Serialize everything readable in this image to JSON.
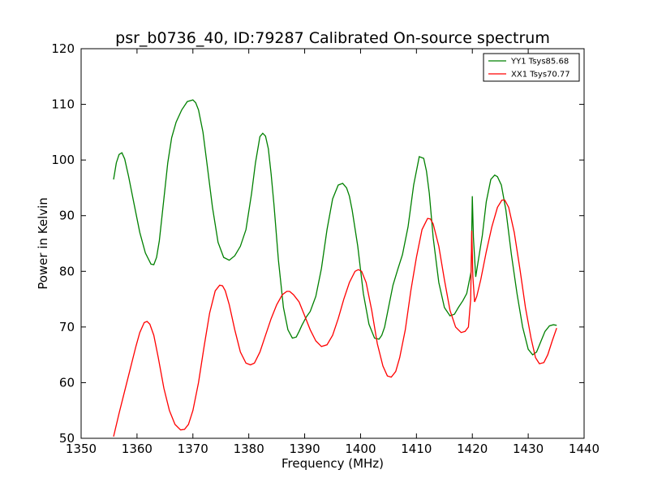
{
  "chart_data": {
    "type": "line",
    "title": "psr_b0736_40, ID:79287 Calibrated On-source spectrum",
    "xlabel": "Frequency (MHz)",
    "ylabel": "Power in Kelvin",
    "xlim": [
      1350,
      1440
    ],
    "ylim": [
      50,
      120
    ],
    "xticks": [
      1350,
      1360,
      1370,
      1380,
      1390,
      1400,
      1410,
      1420,
      1430,
      1440
    ],
    "yticks": [
      50,
      60,
      70,
      80,
      90,
      100,
      110,
      120
    ],
    "grid": false,
    "legend_position": "top-right",
    "series": [
      {
        "name": "YY1 Tsys85.68",
        "color": "#008000",
        "x": [
          1355.8,
          1356.3,
          1356.8,
          1357.3,
          1357.8,
          1358.5,
          1359.5,
          1360.5,
          1361.5,
          1362.5,
          1363.0,
          1363.5,
          1364.0,
          1364.8,
          1365.5,
          1366.2,
          1367.0,
          1368.0,
          1369.0,
          1370.0,
          1370.5,
          1371.0,
          1371.8,
          1372.5,
          1373.5,
          1374.5,
          1375.5,
          1376.5,
          1377.5,
          1378.5,
          1379.5,
          1380.5,
          1381.2,
          1382.0,
          1382.5,
          1383.0,
          1383.5,
          1384.0,
          1384.5,
          1385.3,
          1386.2,
          1387.0,
          1387.8,
          1388.5,
          1389.0,
          1389.5,
          1390.3,
          1391.0,
          1392.0,
          1393.0,
          1394.0,
          1395.0,
          1396.0,
          1396.8,
          1397.5,
          1398.0,
          1398.5,
          1399.5,
          1400.5,
          1401.5,
          1402.5,
          1403.3,
          1403.8,
          1404.3,
          1405.0,
          1405.8,
          1406.7,
          1407.5,
          1408.5,
          1409.5,
          1410.5,
          1411.3,
          1411.8,
          1412.3,
          1413.0,
          1414.0,
          1415.0,
          1416.0,
          1416.8,
          1417.5,
          1418.3,
          1419.0,
          1419.8,
          1420.0,
          1420.2,
          1420.6,
          1421.0,
          1421.8,
          1422.5,
          1423.3,
          1424.0,
          1424.5,
          1425.2,
          1426.0,
          1427.0,
          1428.0,
          1429.0,
          1430.0,
          1430.8,
          1431.5,
          1432.3,
          1433.0,
          1433.8,
          1434.5,
          1435.1
        ],
        "y": [
          96.5,
          99.5,
          101.0,
          101.3,
          100.2,
          97.0,
          92.0,
          87.0,
          83.3,
          81.3,
          81.2,
          82.5,
          85.5,
          93.0,
          99.5,
          104.0,
          106.8,
          109.0,
          110.5,
          110.8,
          110.3,
          109.0,
          105.0,
          99.5,
          91.5,
          85.2,
          82.5,
          82.0,
          82.8,
          84.5,
          87.5,
          94.0,
          99.5,
          104.2,
          104.8,
          104.3,
          102.0,
          97.5,
          92.0,
          82.0,
          73.5,
          69.5,
          68.0,
          68.2,
          69.2,
          70.3,
          71.8,
          72.8,
          75.5,
          80.5,
          87.5,
          93.0,
          95.5,
          95.8,
          95.0,
          93.5,
          91.0,
          84.5,
          76.0,
          70.5,
          68.0,
          67.8,
          68.5,
          70.0,
          73.5,
          77.5,
          80.5,
          83.0,
          88.0,
          95.5,
          100.6,
          100.3,
          98.0,
          94.0,
          86.0,
          78.0,
          73.5,
          72.0,
          72.3,
          73.5,
          74.7,
          76.0,
          80.0,
          93.5,
          86.0,
          79.0,
          81.5,
          86.5,
          92.5,
          96.5,
          97.3,
          97.0,
          95.5,
          91.0,
          83.0,
          76.0,
          70.0,
          66.0,
          65.0,
          65.5,
          67.5,
          69.2,
          70.2,
          70.4,
          70.3
        ]
      },
      {
        "name": "XX1 Tsys70.77",
        "color": "#ff0000",
        "x": [
          1355.8,
          1356.8,
          1357.8,
          1358.8,
          1359.8,
          1360.5,
          1361.3,
          1361.8,
          1362.3,
          1363.0,
          1363.8,
          1364.8,
          1365.8,
          1366.8,
          1367.8,
          1368.5,
          1369.2,
          1370.0,
          1371.0,
          1372.0,
          1373.0,
          1374.0,
          1374.8,
          1375.3,
          1375.8,
          1376.5,
          1377.5,
          1378.5,
          1379.5,
          1380.3,
          1381.0,
          1382.0,
          1383.0,
          1384.0,
          1385.0,
          1386.0,
          1386.8,
          1387.3,
          1388.0,
          1389.0,
          1390.0,
          1391.0,
          1392.0,
          1393.0,
          1394.0,
          1395.0,
          1396.0,
          1397.0,
          1398.0,
          1399.0,
          1399.6,
          1400.2,
          1401.0,
          1402.0,
          1403.0,
          1404.0,
          1404.8,
          1405.5,
          1406.3,
          1407.0,
          1408.0,
          1409.0,
          1410.0,
          1411.0,
          1412.0,
          1412.5,
          1413.0,
          1414.0,
          1415.0,
          1416.0,
          1417.0,
          1418.0,
          1418.7,
          1419.3,
          1419.7,
          1419.9,
          1420.1,
          1420.4,
          1420.8,
          1421.5,
          1422.5,
          1423.5,
          1424.5,
          1425.3,
          1425.8,
          1426.5,
          1427.5,
          1428.5,
          1429.5,
          1430.5,
          1431.3,
          1432.0,
          1432.8,
          1433.5,
          1434.3,
          1435.1
        ],
        "y": [
          50.3,
          54.5,
          58.5,
          62.5,
          66.5,
          69.0,
          70.8,
          71.0,
          70.5,
          68.5,
          64.5,
          59.0,
          55.0,
          52.5,
          51.5,
          51.6,
          52.5,
          55.0,
          60.0,
          66.5,
          72.5,
          76.5,
          77.5,
          77.4,
          76.5,
          74.0,
          69.5,
          65.5,
          63.5,
          63.2,
          63.5,
          65.5,
          68.5,
          71.5,
          74.0,
          75.8,
          76.4,
          76.4,
          75.8,
          74.5,
          72.0,
          69.5,
          67.5,
          66.5,
          66.8,
          68.5,
          71.5,
          75.0,
          78.0,
          80.0,
          80.3,
          80.0,
          78.0,
          73.0,
          67.0,
          63.0,
          61.2,
          61.0,
          62.0,
          64.5,
          69.5,
          76.5,
          82.5,
          87.5,
          89.5,
          89.4,
          88.5,
          84.5,
          78.5,
          73.0,
          70.0,
          69.0,
          69.2,
          70.0,
          75.0,
          87.3,
          79.0,
          74.5,
          75.5,
          78.5,
          83.5,
          88.0,
          91.5,
          92.8,
          92.8,
          91.5,
          87.0,
          80.5,
          73.5,
          68.0,
          64.5,
          63.4,
          63.6,
          65.0,
          67.5,
          69.8
        ]
      }
    ]
  }
}
